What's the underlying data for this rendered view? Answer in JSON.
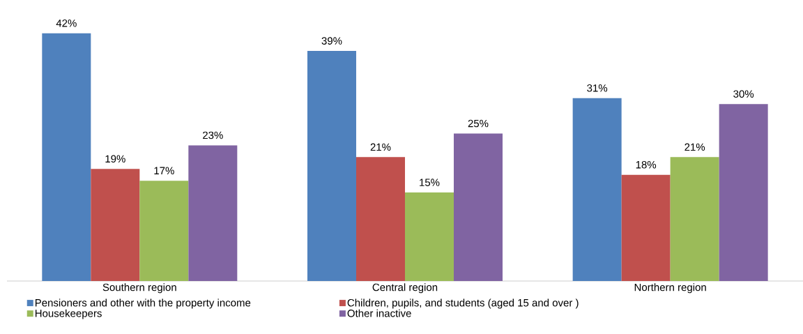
{
  "chart_data": {
    "type": "bar",
    "categories": [
      "Southern region",
      "Central region",
      "Northern region"
    ],
    "series": [
      {
        "name": "Pensioners and other with the property income",
        "color": "#4f81bd",
        "values": [
          42,
          39,
          31
        ],
        "value_labels": [
          "42%",
          "39%",
          "31%"
        ]
      },
      {
        "name": "Children, pupils, and students (aged 15 and over )",
        "color": "#c0504d",
        "values": [
          19,
          21,
          18
        ],
        "value_labels": [
          "19%",
          "21%",
          "18%"
        ]
      },
      {
        "name": "Housekeepers",
        "color": "#9bbb59",
        "values": [
          17,
          15,
          21
        ],
        "value_labels": [
          "17%",
          "15%",
          "21%"
        ]
      },
      {
        "name": "Other inactive",
        "color": "#8064a2",
        "values": [
          23,
          25,
          30
        ],
        "value_labels": [
          "23%",
          "25%",
          "30%"
        ]
      }
    ],
    "legend": "bottom"
  }
}
